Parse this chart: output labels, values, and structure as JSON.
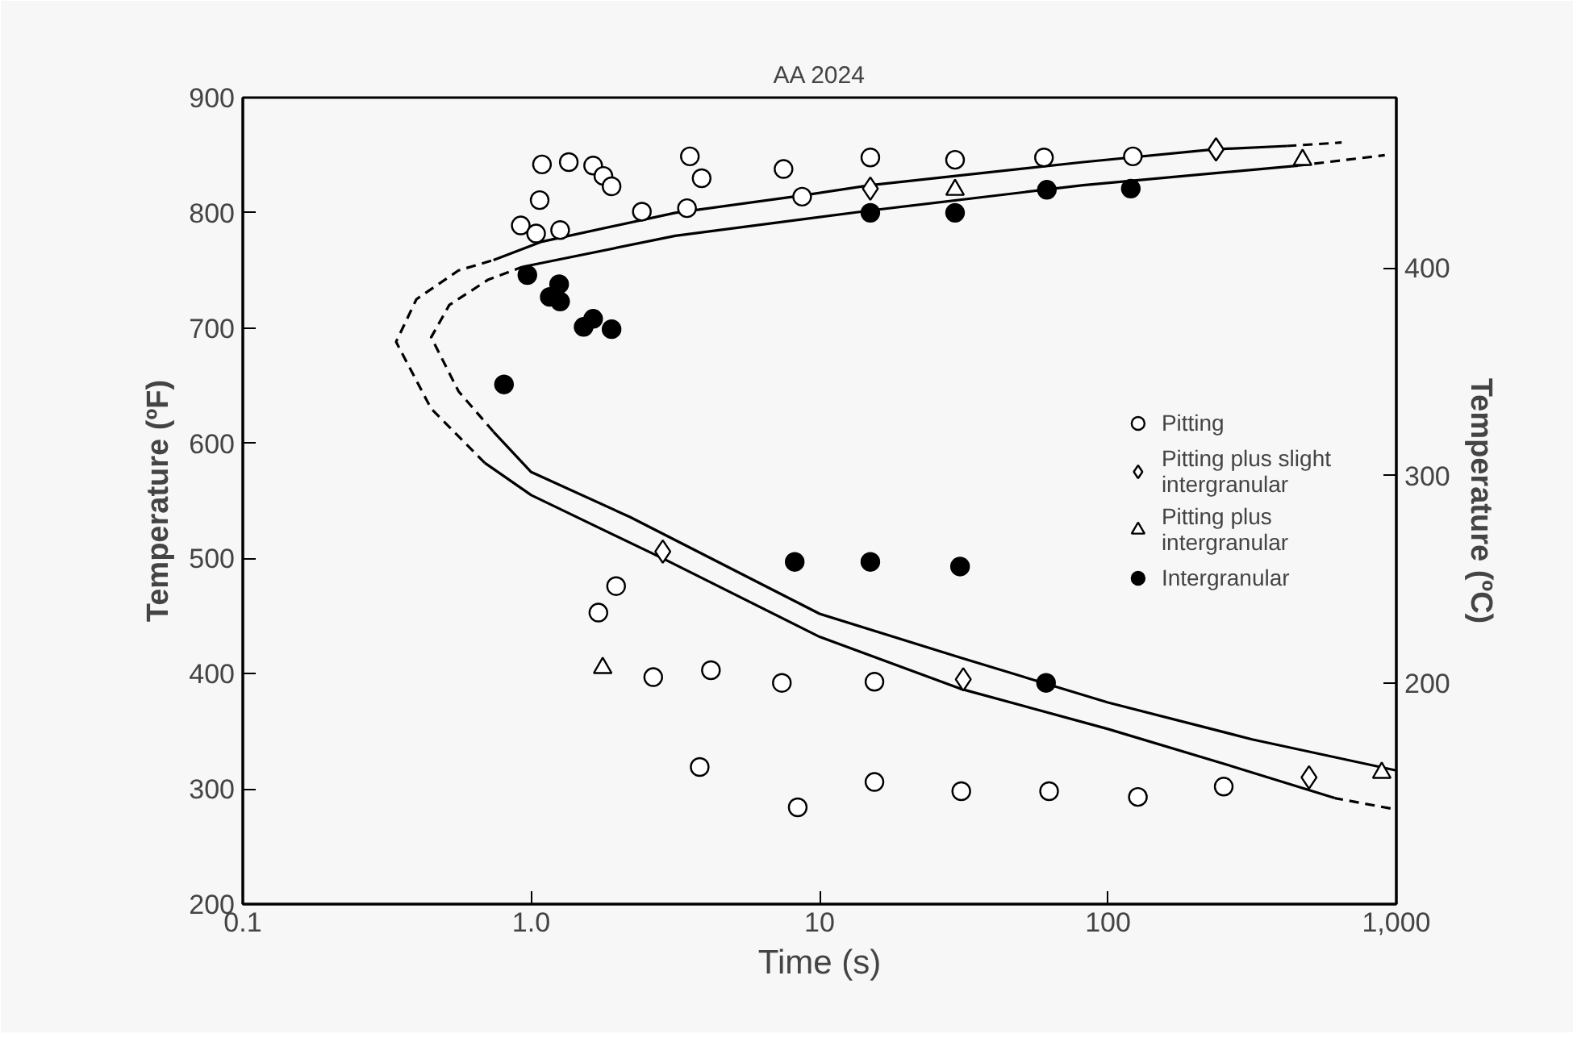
{
  "chart_data": {
    "type": "scatter",
    "title": "AA 2024",
    "xlabel": "Time (s)",
    "ylabel": "Temperature (ºF)",
    "y2label": "Temperature (ºC)",
    "log": "x",
    "xlim": [
      0.1,
      1000
    ],
    "xticks": [
      {
        "value": 0.1,
        "label": "0.1"
      },
      {
        "value": 1,
        "label": "1.0"
      },
      10,
      100,
      {
        "value": 1000,
        "label": "1,000"
      }
    ],
    "ylim": [
      200,
      900
    ],
    "yticks": [
      200,
      300,
      400,
      500,
      600,
      700,
      800,
      900
    ],
    "y2lim": [
      93.33,
      482.2
    ],
    "y2ticks": [
      200,
      300,
      400
    ],
    "grid": false,
    "legend": "right",
    "series": [
      {
        "name": "Pitting",
        "color": "#000000",
        "marker": "circle",
        "x": [
          1.09,
          1.35,
          1.64,
          1.78,
          1.9,
          1.07,
          0.92,
          1.04,
          1.26,
          2.42,
          3.47,
          3.55,
          3.9,
          7.5,
          8.7,
          15,
          29.5,
          60,
          122,
          1.97,
          1.71,
          2.65,
          4.2,
          7.4,
          15.5,
          3.84,
          8.4,
          15.5,
          31,
          62.5,
          127,
          252
        ],
        "values": [
          842,
          844,
          841,
          832,
          823,
          811,
          789,
          782,
          785,
          801,
          804,
          849,
          830,
          838,
          814,
          848,
          846,
          848,
          849,
          476,
          453,
          397,
          403,
          392,
          393,
          319,
          284,
          306,
          298,
          298,
          293,
          302
        ]
      },
      {
        "name": "Pitting plus slight intergranular",
        "color": "#000000",
        "marker": "diamond",
        "x": [
          2.86,
          31.5,
          498,
          15,
          237
        ],
        "values": [
          506,
          395,
          310,
          821,
          855
        ]
      },
      {
        "name": "Pitting plus intergranular",
        "color": "#000000",
        "marker": "triangle",
        "x": [
          1.77,
          890,
          29.5,
          473
        ],
        "values": [
          405,
          314,
          820,
          846
        ]
      },
      {
        "name": "Intergranular",
        "color": "#000000",
        "marker": "circle",
        "x": [
          8.2,
          15,
          30.7,
          61,
          0.97,
          1.25,
          1.16,
          1.26,
          1.52,
          1.64,
          1.9,
          0.805,
          15,
          29.5,
          61.4,
          120
        ],
        "values": [
          497,
          497,
          493,
          392,
          746,
          738,
          727,
          723,
          701,
          708,
          699,
          651,
          800,
          800,
          820,
          821
        ]
      },
      {
        "type": "line",
        "color": "#000000",
        "line_style": "dashed",
        "x": [
          955,
          612
        ],
        "values": [
          283,
          292
        ]
      },
      {
        "type": "line",
        "color": "#000000",
        "line_style": "solid",
        "x": [
          612,
          251,
          100,
          30.7,
          10,
          2.86,
          1,
          0.69
        ],
        "values": [
          292,
          322,
          352,
          387,
          432,
          500,
          555,
          583
        ]
      },
      {
        "type": "line",
        "color": "#000000",
        "line_style": "dashed",
        "x": [
          0.69,
          0.45,
          0.34,
          0.4,
          0.56,
          0.74
        ],
        "values": [
          583,
          630,
          688,
          725,
          750,
          759
        ]
      },
      {
        "type": "line",
        "color": "#000000",
        "line_style": "solid",
        "x": [
          0.74,
          1.09,
          3.16,
          8.7,
          15,
          82,
          230,
          417
        ],
        "values": [
          759,
          775,
          800,
          815,
          824,
          844,
          855,
          858
        ]
      },
      {
        "type": "line",
        "color": "#000000",
        "line_style": "dashed",
        "x": [
          417,
          646
        ],
        "values": [
          858,
          861
        ]
      },
      {
        "type": "line",
        "color": "#000000",
        "line_style": "solid",
        "x": [
          1000,
          316,
          100,
          30.7,
          10,
          2.2,
          1,
          0.74
        ],
        "values": [
          316,
          343,
          375,
          414,
          452,
          536,
          575,
          610
        ]
      },
      {
        "type": "line",
        "color": "#000000",
        "line_style": "dashed",
        "x": [
          0.74,
          0.56,
          0.45,
          0.52,
          0.71,
          0.93
        ],
        "values": [
          610,
          645,
          692,
          720,
          742,
          753
        ]
      },
      {
        "type": "line",
        "color": "#000000",
        "line_style": "solid",
        "x": [
          0.93,
          3.16,
          15,
          82,
          457
        ],
        "values": [
          753,
          780,
          802,
          824,
          841
        ]
      },
      {
        "type": "line",
        "color": "#000000",
        "line_style": "dashed",
        "x": [
          457,
          912
        ],
        "values": [
          841,
          850
        ]
      }
    ]
  }
}
